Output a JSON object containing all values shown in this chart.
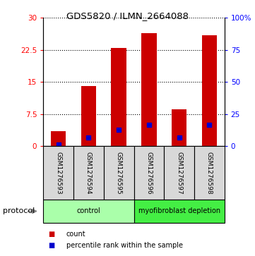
{
  "title": "GDS5820 / ILMN_2664088",
  "samples": [
    "GSM1276593",
    "GSM1276594",
    "GSM1276595",
    "GSM1276596",
    "GSM1276597",
    "GSM1276598"
  ],
  "counts": [
    3.5,
    14.0,
    23.0,
    26.5,
    8.5,
    26.0
  ],
  "percentile_ranks": [
    1.2,
    6.5,
    12.5,
    16.5,
    6.5,
    16.5
  ],
  "ylim_left": [
    0,
    30
  ],
  "ylim_right": [
    0,
    100
  ],
  "yticks_left": [
    0,
    7.5,
    15,
    22.5,
    30
  ],
  "yticks_right": [
    0,
    25,
    50,
    75,
    100
  ],
  "left_ytick_labels": [
    "0",
    "7.5",
    "15",
    "22.5",
    "30"
  ],
  "right_ytick_labels": [
    "0",
    "25",
    "50",
    "75",
    "100%"
  ],
  "bar_color": "#cc0000",
  "marker_color": "#0000cc",
  "protocol_groups": [
    {
      "label": "control",
      "indices": [
        0,
        1,
        2
      ],
      "color": "#aaffaa"
    },
    {
      "label": "myofibroblast depletion",
      "indices": [
        3,
        4,
        5
      ],
      "color": "#44ee44"
    }
  ],
  "legend_items": [
    {
      "label": "count",
      "color": "#cc0000"
    },
    {
      "label": "percentile rank within the sample",
      "color": "#0000cc"
    }
  ],
  "protocol_label": "protocol",
  "sample_bg_color": "#d8d8d8",
  "plot_bg": "#ffffff",
  "bar_width": 0.5
}
